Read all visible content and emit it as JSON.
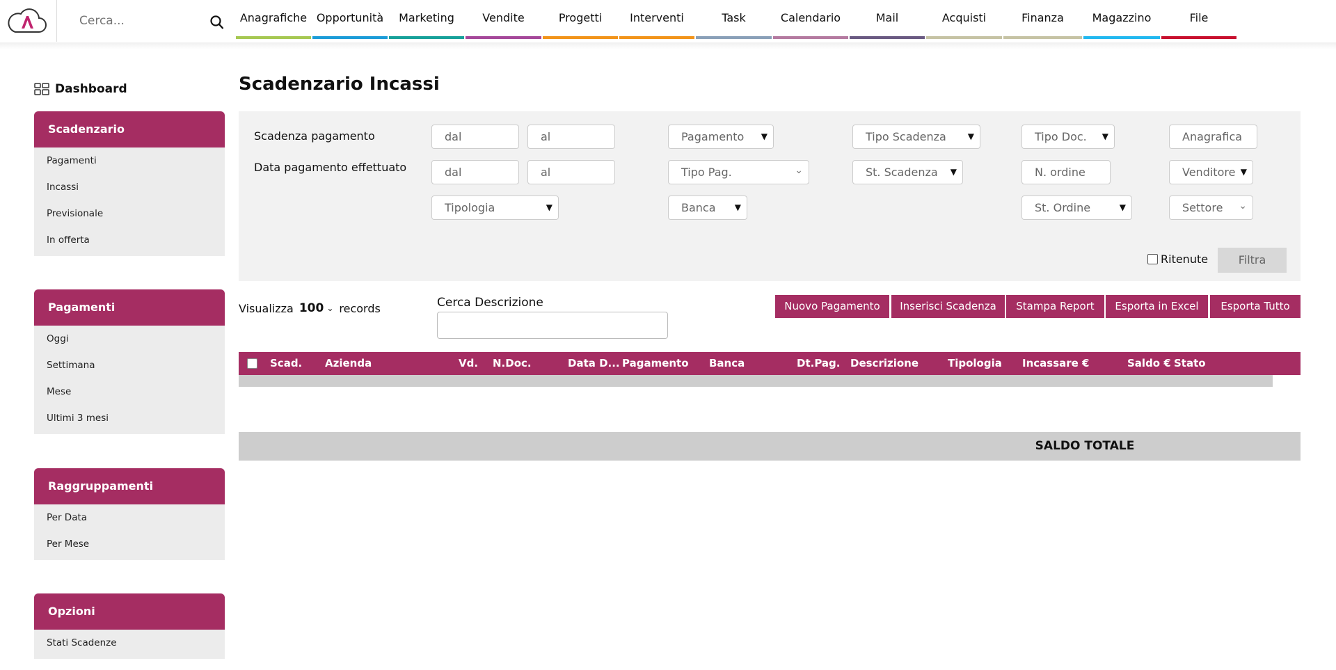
{
  "header": {
    "search_placeholder": "Cerca...",
    "nav": [
      {
        "label": "Anagrafiche",
        "color": "#a6c852"
      },
      {
        "label": "Opportunità",
        "color": "#1b9cd8"
      },
      {
        "label": "Marketing",
        "color": "#17a19a"
      },
      {
        "label": "Vendite",
        "color": "#a5489a"
      },
      {
        "label": "Progetti",
        "color": "#f2941a"
      },
      {
        "label": "Interventi",
        "color": "#f2941a"
      },
      {
        "label": "Task",
        "color": "#8aa0b8"
      },
      {
        "label": "Calendario",
        "color": "#b47aa0"
      },
      {
        "label": "Mail",
        "color": "#6a5a82"
      },
      {
        "label": "Acquisti",
        "color": "#c6c3a4"
      },
      {
        "label": "Finanza",
        "color": "#c6c3a4"
      },
      {
        "label": "Magazzino",
        "color": "#22b8f0"
      },
      {
        "label": "File",
        "color": "#c8102e"
      }
    ]
  },
  "sidebar": {
    "dashboard": "Dashboard",
    "sections": [
      {
        "title": "Scadenzario",
        "items": [
          "Pagamenti",
          "Incassi",
          "Previsionale",
          "In offerta"
        ]
      },
      {
        "title": "Pagamenti",
        "items": [
          "Oggi",
          "Settimana",
          "Mese",
          "Ultimi 3 mesi"
        ]
      },
      {
        "title": "Raggruppamenti",
        "items": [
          "Per Data",
          "Per Mese"
        ]
      },
      {
        "title": "Opzioni",
        "items": [
          "Stati Scadenze"
        ]
      }
    ]
  },
  "page": {
    "title": "Scadenzario Incassi"
  },
  "filters": {
    "label_scadenza": "Scadenza pagamento",
    "label_data_pag": "Data pagamento effettuato",
    "dal": "dal",
    "al": "al",
    "pagamento": "Pagamento",
    "tipo_scadenza": "Tipo Scadenza",
    "tipo_doc": "Tipo Doc.",
    "anagrafica": "Anagrafica",
    "tipo_pag": "Tipo Pag.",
    "st_scadenza": "St. Scadenza",
    "n_ordine": "N. ordine",
    "venditore": "Venditore",
    "tipologia": "Tipologia",
    "banca": "Banca",
    "st_ordine": "St. Ordine",
    "settore": "Settore",
    "ritenute": "Ritenute",
    "filtra": "Filtra"
  },
  "toolbar": {
    "visualizza": "Visualizza",
    "records_value": "100",
    "records": "records",
    "cerca_descrizione": "Cerca Descrizione",
    "buttons": [
      "Nuovo Pagamento",
      "Inserisci Scadenza",
      "Stampa Report",
      "Esporta in Excel",
      "Esporta Tutto"
    ]
  },
  "table": {
    "columns": [
      "Scad.",
      "Azienda",
      "Vd.",
      "N.Doc.",
      "Data D...",
      "Pagamento",
      "Banca",
      "Dt.Pag.",
      "Descrizione",
      "Tipologia",
      "Incassare €",
      "Saldo €",
      "Stato"
    ],
    "total_label": "SALDO TOTALE"
  },
  "colors": {
    "accent": "#a52d62",
    "panel": "#f2f2f2"
  }
}
